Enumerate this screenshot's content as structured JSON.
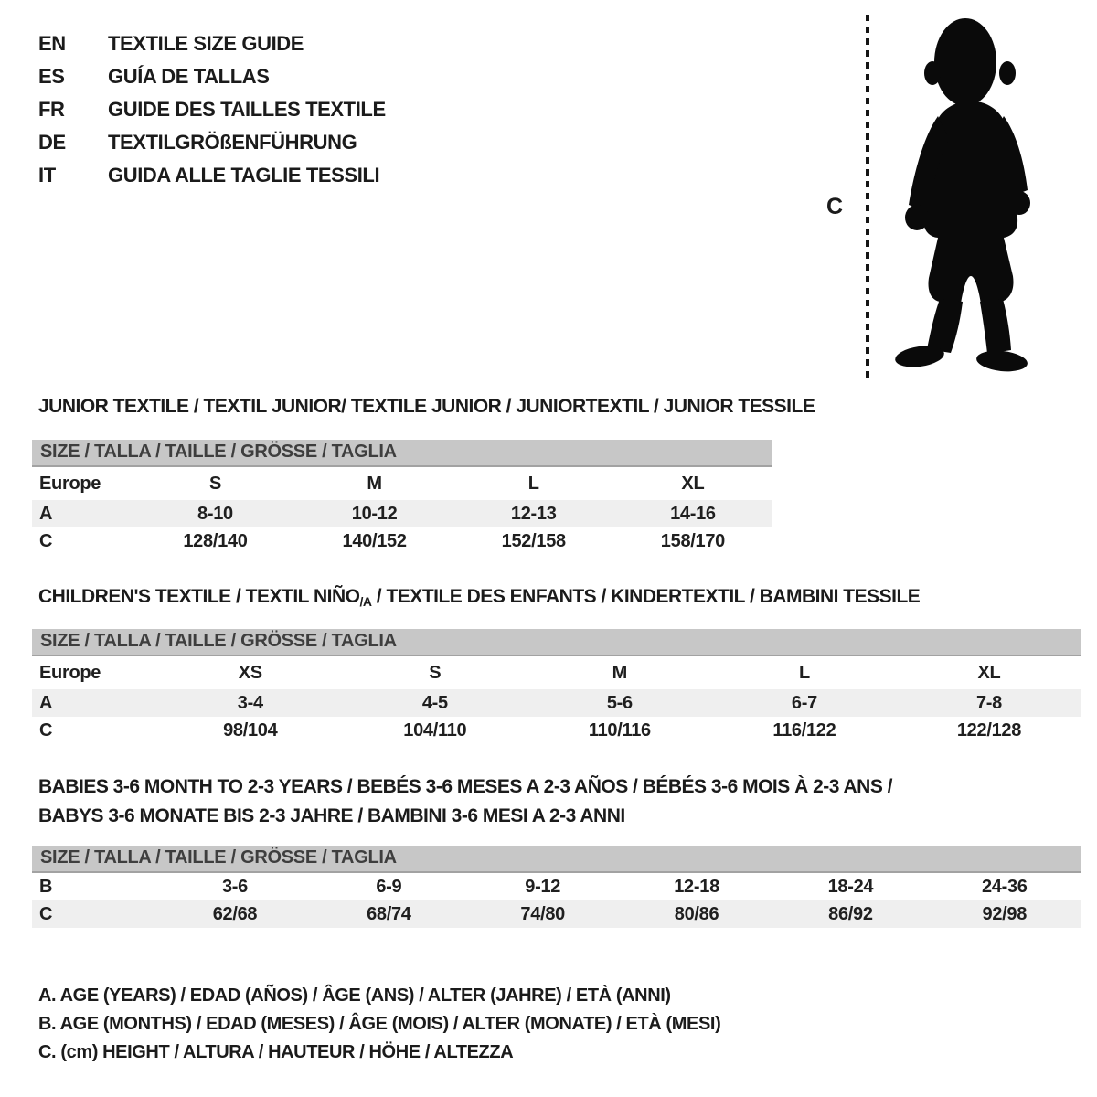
{
  "languages": {
    "items": [
      {
        "code": "EN",
        "title": "TEXTILE SIZE GUIDE"
      },
      {
        "code": "ES",
        "title": "GUÍA DE TALLAS"
      },
      {
        "code": "FR",
        "title": "GUIDE DES TAILLES TEXTILE"
      },
      {
        "code": "DE",
        "title": "TEXTILGRÖßENFÜHRUNG"
      },
      {
        "code": "IT",
        "title": "GUIDA ALLE TAGLIE TESSILI"
      }
    ]
  },
  "figure": {
    "measure_label": "C",
    "silhouette": "toddler-boy-silhouette"
  },
  "size_row_header": "SIZE / TALLA / TAILLE / GRÖSSE / TAGLIA",
  "junior": {
    "heading": "JUNIOR TEXTILE / TEXTIL JUNIOR/ TEXTILE JUNIOR / JUNIORTEXTIL / JUNIOR TESSILE",
    "columns": [
      "Europe",
      "S",
      "M",
      "L",
      "XL"
    ],
    "rows": [
      {
        "label": "A",
        "shaded": true,
        "values": [
          "8-10",
          "10-12",
          "12-13",
          "14-16"
        ]
      },
      {
        "label": "C",
        "shaded": false,
        "values": [
          "128/140",
          "140/152",
          "152/158",
          "158/170"
        ]
      }
    ]
  },
  "children": {
    "heading_pre": "CHILDREN'S TEXTILE / TEXTIL NIÑO",
    "heading_sub": "/A",
    "heading_post": " / TEXTILE DES ENFANTS / KINDERTEXTIL / BAMBINI TESSILE",
    "columns": [
      "Europe",
      "XS",
      "S",
      "M",
      "L",
      "XL"
    ],
    "rows": [
      {
        "label": "A",
        "shaded": true,
        "values": [
          "3-4",
          "4-5",
          "5-6",
          "6-7",
          "7-8"
        ]
      },
      {
        "label": "C",
        "shaded": false,
        "values": [
          "98/104",
          "104/110",
          "110/116",
          "116/122",
          "122/128"
        ]
      }
    ]
  },
  "babies": {
    "heading_line1": "BABIES 3-6 MONTH TO 2-3 YEARS / BEBÉS 3-6 MESES A 2-3 AÑOS / BÉBÉS 3-6 MOIS À 2-3 ANS /",
    "heading_line2": "BABYS 3-6 MONATE BIS 2-3 JAHRE / BAMBINI 3-6 MESI A 2-3 ANNI",
    "rows": [
      {
        "label": "B",
        "shaded": false,
        "values": [
          "3-6",
          "6-9",
          "9-12",
          "12-18",
          "18-24",
          "24-36"
        ]
      },
      {
        "label": "C",
        "shaded": true,
        "values": [
          "62/68",
          "68/74",
          "74/80",
          "80/86",
          "86/92",
          "92/98"
        ]
      }
    ]
  },
  "legend": {
    "lines": [
      "A. AGE (YEARS) / EDAD (AÑOS) / ÂGE (ANS) / ALTER (JAHRE) / ETÀ (ANNI)",
      "B. AGE (MONTHS) / EDAD (MESES) / ÂGE (MOIS) / ALTER (MONATE) / ETÀ (MESI)",
      "C. (cm) HEIGHT / ALTURA / HAUTEUR / HÖHE / ALTEZZA"
    ]
  },
  "colors": {
    "text": "#1b1b1b",
    "size_bar_bg": "#c7c7c7",
    "size_bar_edge": "#a2a2a2",
    "size_bar_text": "#3e3e3e",
    "row_shaded_bg": "#efefef",
    "silhouette": "#0a0a0a"
  }
}
